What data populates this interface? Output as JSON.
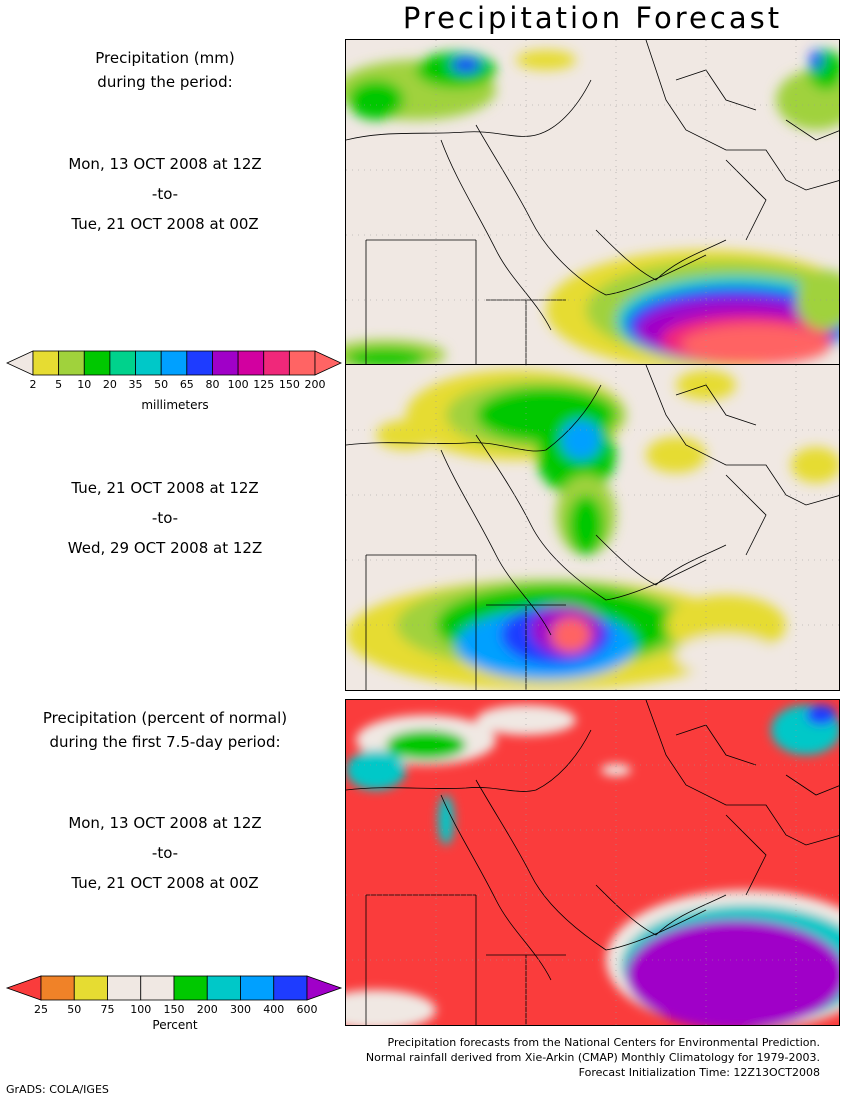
{
  "title": "Precipitation Forecast",
  "period1": {
    "header": [
      "Precipitation (mm)",
      "during the period:"
    ],
    "start": "Mon, 13 OCT 2008 at 12Z",
    "sep": "-to-",
    "end": "Tue, 21 OCT 2008 at 00Z"
  },
  "period2": {
    "start": "Tue, 21 OCT 2008 at 12Z",
    "sep": "-to-",
    "end": "Wed, 29 OCT 2008 at 12Z"
  },
  "period3": {
    "header": [
      "Precipitation (percent of normal)",
      "during the first 7.5-day period:"
    ],
    "start": "Mon, 13 OCT 2008 at 12Z",
    "sep": "-to-",
    "end": "Tue, 21 OCT 2008 at 00Z"
  },
  "legend_mm": {
    "unit": "millimeters",
    "ticks": [
      "2",
      "5",
      "10",
      "20",
      "35",
      "50",
      "65",
      "80",
      "100",
      "125",
      "150",
      "200"
    ],
    "colors": [
      "#f0e8e3",
      "#e6dc32",
      "#a0d23c",
      "#00c800",
      "#00d28c",
      "#00c8c8",
      "#00a0ff",
      "#1e3cff",
      "#a000c8",
      "#d200a0",
      "#f0287a",
      "#ff6464",
      "#ff6464"
    ]
  },
  "legend_pct": {
    "unit": "Percent",
    "ticks": [
      "25",
      "50",
      "75",
      "100",
      "150",
      "200",
      "300",
      "400",
      "600"
    ],
    "colors": [
      "#fa3c3c",
      "#f08228",
      "#e6dc32",
      "#f0e8e3",
      "#f0e8e3",
      "#00c800",
      "#00c8c8",
      "#00a0ff",
      "#1e3cff",
      "#a000c8"
    ]
  },
  "footer": [
    "Precipitation forecasts from the National Centers for Environmental Prediction.",
    "Normal rainfall derived from Xie-Arkin (CMAP) Monthly Climatology for 1979-2003.",
    "Forecast Initialization Time: 12Z13OCT2008"
  ],
  "credit": "GrADS: COLA/IGES"
}
